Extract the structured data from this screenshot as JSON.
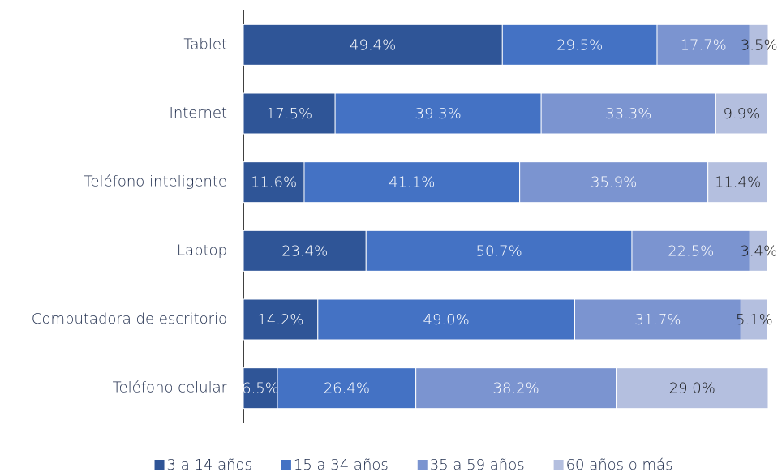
{
  "chart_data": {
    "type": "stacked-barh",
    "categories": [
      "Tablet",
      "Internet",
      "Teléfono inteligente",
      "Laptop",
      "Computadora de escritorio",
      "Teléfono celular"
    ],
    "series": [
      {
        "name": "3 a 14 años",
        "color": "#2f5597",
        "values": [
          49.4,
          17.5,
          11.6,
          23.4,
          14.2,
          6.5
        ],
        "value_labels": [
          "49.4%",
          "17.5%",
          "11.6%",
          "23.4%",
          "14.2%",
          "6.5%"
        ]
      },
      {
        "name": "15 a 34 años",
        "color": "#4472c4",
        "values": [
          29.5,
          39.3,
          41.1,
          50.7,
          49.0,
          26.4
        ],
        "value_labels": [
          "29.5%",
          "39.3%",
          "41.1%",
          "50.7%",
          "49.0%",
          "26.4%"
        ]
      },
      {
        "name": "35 a 59 años",
        "color": "#7b94d0",
        "values": [
          17.7,
          33.3,
          35.9,
          22.5,
          31.7,
          38.2
        ],
        "value_labels": [
          "17.7%",
          "33.3%",
          "35.9%",
          "22.5%",
          "31.7%",
          "38.2%"
        ]
      },
      {
        "name": "60 años o más",
        "color": "#b4bfdf",
        "values": [
          3.5,
          9.9,
          11.4,
          3.4,
          5.1,
          29.0
        ],
        "value_labels": [
          "3.5%",
          "9.9%",
          "11.4%",
          "3.4%",
          "5.1%",
          "29.0%"
        ]
      }
    ]
  }
}
